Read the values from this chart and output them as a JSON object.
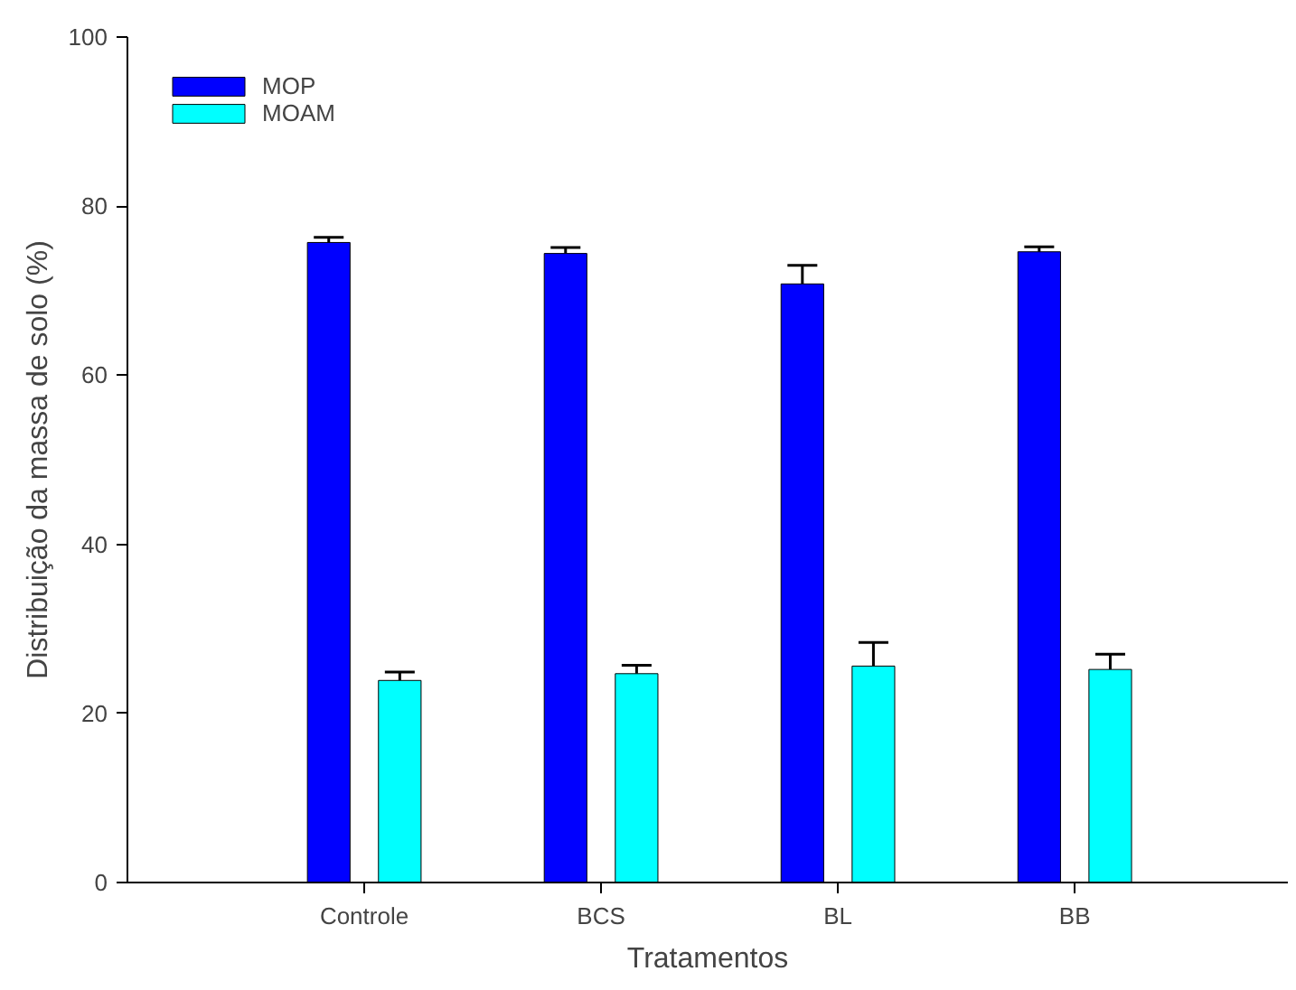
{
  "chart_data": {
    "type": "bar",
    "xlabel": "Tratamentos",
    "ylabel": "Distribuição da massa de solo (%)",
    "categories": [
      "Controle",
      "BCS",
      "BL",
      "BB"
    ],
    "series": [
      {
        "name": "MOP",
        "color": "#0000ff",
        "values": [
          75.7,
          74.4,
          70.8,
          74.6
        ],
        "errors": [
          [
            75.7,
            76.3
          ],
          [
            74.4,
            75.1
          ],
          [
            70.8,
            73.0
          ],
          [
            74.6,
            75.2
          ]
        ]
      },
      {
        "name": "MOAM",
        "color": "#00ffff",
        "values": [
          23.9,
          24.7,
          25.6,
          25.2
        ],
        "errors": [
          [
            23.9,
            24.9
          ],
          [
            24.7,
            25.7
          ],
          [
            25.6,
            28.4
          ],
          [
            25.2,
            27.0
          ]
        ]
      }
    ],
    "ylim": [
      0,
      100
    ],
    "yticks": [
      0,
      20,
      40,
      60,
      80,
      100
    ],
    "grid": false,
    "legend": "top left"
  }
}
